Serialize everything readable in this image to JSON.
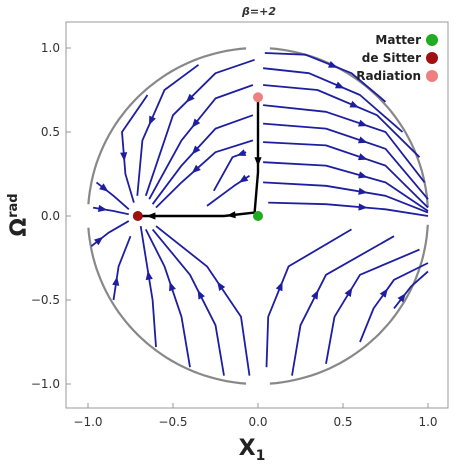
{
  "chart_data": {
    "type": "scatter",
    "subtype": "phase-portrait",
    "title": "β=+2",
    "xlabel": "X",
    "xlabel_sub": "1",
    "ylabel": "Ω",
    "ylabel_sup": "rad",
    "xlim": [
      -1.15,
      1.15
    ],
    "ylim": [
      -1.15,
      1.15
    ],
    "xticks": [
      -1.0,
      -0.5,
      0.0,
      0.5,
      1.0
    ],
    "yticks": [
      -1.0,
      -0.5,
      0.0,
      0.5,
      1.0
    ],
    "xtick_labels": [
      "−1.0",
      "−0.5",
      "0.0",
      "0.5",
      "1.0"
    ],
    "ytick_labels": [
      "−1.0",
      "−0.5",
      "0.0",
      "0.5",
      "1.0"
    ],
    "grid": false,
    "legend_position": "top-right",
    "boundary": {
      "shape": "circle",
      "radius": 1.0,
      "color": "#888888"
    },
    "stream_color": "#1e1ea0",
    "fixed_points": [
      {
        "name": "Matter",
        "x": 0.0,
        "y": 0.0,
        "color": "#22aa22"
      },
      {
        "name": "de Sitter",
        "x": -0.707,
        "y": 0.0,
        "color": "#a01010"
      },
      {
        "name": "Radiation",
        "x": 0.0,
        "y": 0.707,
        "color": "#f08080"
      }
    ],
    "trajectory": {
      "color": "#000000",
      "points": [
        [
          0.0,
          0.707
        ],
        [
          0.0,
          0.26
        ],
        [
          -0.02,
          0.02
        ],
        [
          -0.2,
          0.0
        ],
        [
          -0.707,
          0.0
        ]
      ]
    }
  }
}
